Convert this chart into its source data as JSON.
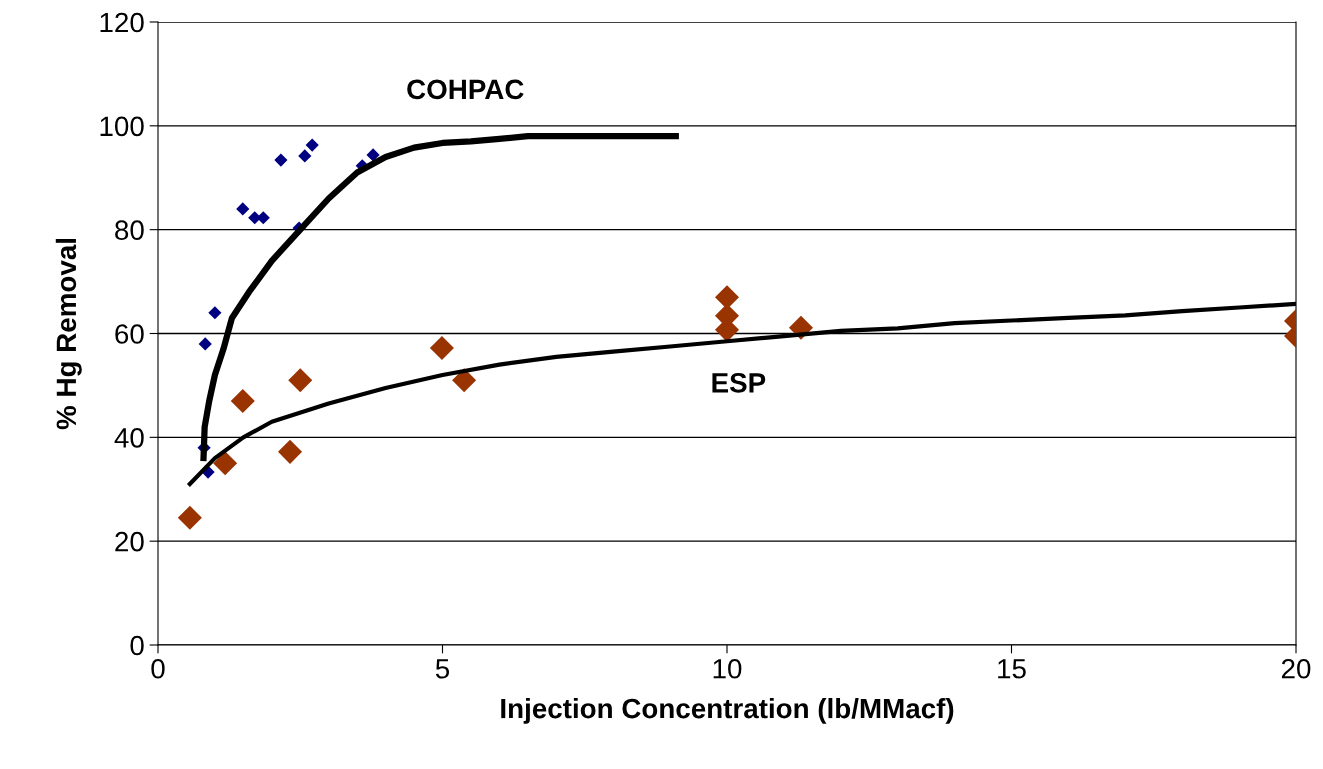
{
  "chart_data": {
    "type": "scatter",
    "xlabel": "Injection Concentration (lb/MMacf)",
    "ylabel": "% Hg Removal",
    "xlim": [
      0,
      20
    ],
    "xticks": [
      0,
      5,
      10,
      15,
      20
    ],
    "ylim": [
      0,
      120
    ],
    "yticks": [
      0,
      20,
      40,
      60,
      80,
      100,
      120
    ],
    "grid": "y",
    "series": [
      {
        "marker": "diamond",
        "color": "#000080",
        "x": [
          0.81,
          0.88,
          0.83,
          1.0,
          1.49,
          1.7,
          1.85,
          2.16,
          2.58,
          2.71,
          2.48,
          3.59,
          3.78
        ],
        "values": [
          38,
          33.3,
          58,
          64,
          84,
          82.3,
          82.3,
          93.4,
          94.2,
          96.3,
          80.3,
          92.3,
          94.4
        ]
      },
      {
        "marker": "diamond",
        "color": "#993300",
        "x": [
          0.56,
          1.18,
          1.49,
          2.32,
          2.5,
          4.99,
          5.38,
          10,
          10,
          10,
          11.3,
          20,
          20
        ],
        "values": [
          24.5,
          35,
          47,
          37.2,
          51,
          57.2,
          51,
          67,
          63.4,
          60.7,
          61.1,
          62.4,
          59.5
        ]
      },
      {
        "type": "line",
        "marker": "none",
        "color": "#000000",
        "x": [
          0.8,
          0.82,
          0.9,
          1.0,
          1.15,
          1.3,
          1.6,
          2.0,
          2.5,
          3.0,
          3.5,
          4.0,
          4.5,
          5.0,
          5.5,
          6.0,
          6.5,
          9.1
        ],
        "values": [
          36,
          42,
          47,
          52,
          57,
          63,
          68,
          74,
          80,
          86,
          91,
          94,
          95.8,
          96.7,
          97,
          97.5,
          98,
          98
        ]
      },
      {
        "type": "line",
        "marker": "none",
        "color": "#000000",
        "x": [
          0.56,
          1,
          1.5,
          2,
          3,
          4,
          5,
          6,
          7,
          8,
          9,
          10,
          11,
          12,
          13,
          14,
          15,
          16,
          17,
          18,
          19,
          20
        ],
        "values": [
          31,
          36,
          40,
          43,
          46.5,
          49.5,
          52,
          54,
          55.5,
          56.5,
          57.5,
          58.5,
          59.5,
          60.5,
          61,
          62,
          62.5,
          63,
          63.5,
          64.3,
          65,
          65.7
        ]
      }
    ],
    "annotations": [
      "COHPAC",
      "ESP"
    ]
  }
}
